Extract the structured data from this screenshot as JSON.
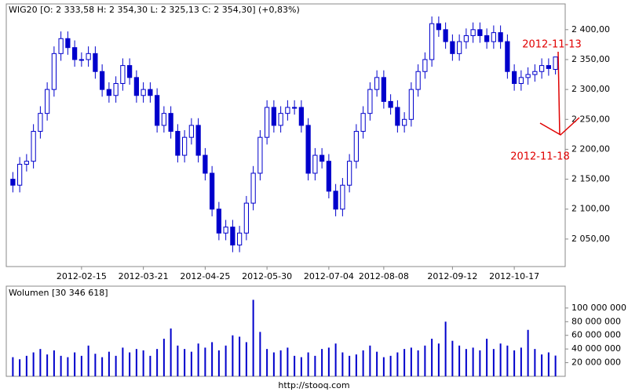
{
  "chart_data": [
    {
      "type": "candlestick",
      "title": "WIG20 [O: 2 333,58  H: 2 354,30  L: 2 325,13  C: 2 354,30] (+0,83%)",
      "categories": [
        null,
        null,
        null,
        null,
        null,
        null,
        null,
        null,
        null,
        null,
        "2012-02-15",
        null,
        null,
        null,
        null,
        null,
        null,
        null,
        null,
        "2012-03-21",
        null,
        null,
        null,
        null,
        null,
        null,
        null,
        null,
        "2012-04-25",
        null,
        null,
        null,
        null,
        null,
        null,
        null,
        null,
        "2012-05-30",
        null,
        null,
        null,
        null,
        null,
        null,
        null,
        null,
        "2012-07-04",
        null,
        null,
        null,
        null,
        null,
        null,
        null,
        "2012-08-08",
        null,
        null,
        null,
        null,
        null,
        null,
        null,
        null,
        null,
        "2012-09-12",
        null,
        null,
        null,
        null,
        null,
        null,
        null,
        null,
        "2012-10-17",
        null,
        null,
        null,
        null,
        null,
        null
      ],
      "open": [
        2150,
        2140,
        2175,
        2180,
        2230,
        2260,
        2300,
        2360,
        2385,
        2370,
        2350,
        2350,
        2360,
        2330,
        2300,
        2290,
        2310,
        2340,
        2320,
        2290,
        2300,
        2290,
        2240,
        2260,
        2230,
        2190,
        2220,
        2240,
        2190,
        2160,
        2100,
        2060,
        2070,
        2040,
        2060,
        2110,
        2160,
        2220,
        2270,
        2240,
        2260,
        2270,
        2270,
        2240,
        2160,
        2190,
        2180,
        2130,
        2100,
        2140,
        2180,
        2230,
        2260,
        2300,
        2320,
        2280,
        2270,
        2240,
        2250,
        2300,
        2330,
        2350,
        2410,
        2400,
        2380,
        2360,
        2380,
        2390,
        2400,
        2390,
        2380,
        2395,
        2380,
        2330,
        2310,
        2320,
        2325,
        2330,
        2340,
        2333.58
      ],
      "high": [
        2162,
        2187,
        2192,
        2242,
        2272,
        2312,
        2372,
        2397,
        2397,
        2382,
        2362,
        2372,
        2372,
        2342,
        2312,
        2322,
        2352,
        2352,
        2332,
        2312,
        2312,
        2302,
        2272,
        2272,
        2242,
        2232,
        2252,
        2252,
        2202,
        2172,
        2112,
        2082,
        2082,
        2072,
        2122,
        2172,
        2232,
        2282,
        2282,
        2272,
        2282,
        2282,
        2282,
        2252,
        2202,
        2202,
        2192,
        2142,
        2152,
        2192,
        2242,
        2272,
        2312,
        2332,
        2332,
        2292,
        2282,
        2262,
        2312,
        2342,
        2362,
        2422,
        2422,
        2412,
        2392,
        2392,
        2402,
        2412,
        2412,
        2402,
        2407,
        2407,
        2392,
        2342,
        2332,
        2337,
        2342,
        2352,
        2352,
        2354.3
      ],
      "low": [
        2128,
        2128,
        2163,
        2168,
        2218,
        2248,
        2288,
        2348,
        2358,
        2338,
        2338,
        2338,
        2318,
        2288,
        2278,
        2278,
        2298,
        2308,
        2278,
        2278,
        2278,
        2228,
        2228,
        2218,
        2178,
        2178,
        2208,
        2178,
        2148,
        2088,
        2048,
        2048,
        2028,
        2028,
        2048,
        2098,
        2148,
        2208,
        2228,
        2228,
        2248,
        2258,
        2228,
        2148,
        2148,
        2168,
        2118,
        2088,
        2088,
        2128,
        2168,
        2218,
        2248,
        2288,
        2268,
        2258,
        2228,
        2228,
        2238,
        2288,
        2318,
        2338,
        2388,
        2368,
        2348,
        2348,
        2368,
        2378,
        2378,
        2368,
        2368,
        2368,
        2318,
        2298,
        2298,
        2308,
        2313,
        2318,
        2323,
        2325.13
      ],
      "close": [
        2140,
        2175,
        2180,
        2230,
        2260,
        2300,
        2360,
        2385,
        2370,
        2350,
        2350,
        2360,
        2330,
        2300,
        2290,
        2310,
        2340,
        2320,
        2290,
        2300,
        2290,
        2240,
        2260,
        2230,
        2190,
        2220,
        2240,
        2190,
        2160,
        2100,
        2060,
        2070,
        2040,
        2060,
        2110,
        2160,
        2220,
        2270,
        2240,
        2260,
        2270,
        2270,
        2240,
        2160,
        2190,
        2180,
        2130,
        2100,
        2140,
        2180,
        2230,
        2260,
        2300,
        2320,
        2280,
        2270,
        2240,
        2250,
        2300,
        2330,
        2350,
        2410,
        2400,
        2380,
        2360,
        2380,
        2390,
        2400,
        2390,
        2380,
        2395,
        2380,
        2330,
        2310,
        2320,
        2325,
        2330,
        2340,
        2335,
        2354.3
      ],
      "color": "#0000cc",
      "ylim": [
        2004,
        2443
      ],
      "yticks": [
        {
          "value": 2050,
          "label": "2 050,00"
        },
        {
          "value": 2100,
          "label": "2 100,00"
        },
        {
          "value": 2150,
          "label": "2 150,00"
        },
        {
          "value": 2200,
          "label": "2 200,00"
        },
        {
          "value": 2250,
          "label": "2 250,00"
        },
        {
          "value": 2300,
          "label": "2 300,00"
        },
        {
          "value": 2350,
          "label": "2 350,00"
        },
        {
          "value": 2400,
          "label": "2 400,00"
        }
      ],
      "annotations": [
        "2012-11-13",
        "2012-11-18"
      ],
      "annotation_color": "#e00000"
    },
    {
      "type": "bar",
      "title": "Wolumen [30 346 618]",
      "values": [
        28000000,
        25000000,
        30000000,
        35000000,
        40000000,
        32000000,
        38000000,
        30000000,
        28000000,
        35000000,
        30000000,
        45000000,
        33000000,
        28000000,
        36000000,
        30000000,
        42000000,
        35000000,
        40000000,
        38000000,
        30000000,
        40000000,
        55000000,
        70000000,
        45000000,
        40000000,
        36000000,
        48000000,
        42000000,
        50000000,
        38000000,
        45000000,
        60000000,
        58000000,
        50000000,
        112000000,
        65000000,
        40000000,
        35000000,
        38000000,
        42000000,
        30000000,
        28000000,
        35000000,
        30000000,
        40000000,
        42000000,
        48000000,
        35000000,
        30000000,
        32000000,
        38000000,
        45000000,
        36000000,
        28000000,
        30000000,
        35000000,
        40000000,
        42000000,
        38000000,
        45000000,
        55000000,
        48000000,
        80000000,
        52000000,
        45000000,
        40000000,
        42000000,
        38000000,
        55000000,
        40000000,
        48000000,
        45000000,
        38000000,
        42000000,
        68000000,
        40000000,
        32000000,
        35000000,
        30346618
      ],
      "color": "#0000cc",
      "ylim": [
        0,
        132000000
      ],
      "yticks": [
        {
          "value": 20000000,
          "label": "20 000 000"
        },
        {
          "value": 40000000,
          "label": "40 000 000"
        },
        {
          "value": 60000000,
          "label": "60 000 000"
        },
        {
          "value": 80000000,
          "label": "80 000 000"
        },
        {
          "value": 100000000,
          "label": "100 000 000"
        }
      ]
    }
  ],
  "footer": "http://stooq.com"
}
